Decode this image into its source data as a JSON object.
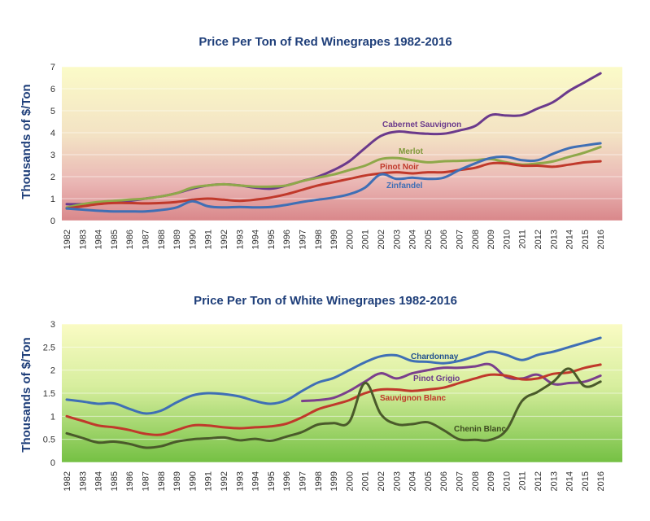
{
  "chart_data": [
    {
      "type": "line",
      "title": "Price Per Ton of Red Winegrapes 1982-2016",
      "ylabel": "Thousands of $/Ton",
      "xlabel": "",
      "ylim": [
        0,
        7
      ],
      "yticks": [
        0,
        1,
        2,
        3,
        4,
        5,
        6,
        7
      ],
      "background": "gradient-yellow-to-red",
      "categories": [
        "1982",
        "1983",
        "1984",
        "1985",
        "1986",
        "1987",
        "1988",
        "1989",
        "1990",
        "1991",
        "1992",
        "1993",
        "1994",
        "1995",
        "1996",
        "1997",
        "1998",
        "1999",
        "2000",
        "2001",
        "2002",
        "2003",
        "2004",
        "2005",
        "2006",
        "2007",
        "2008",
        "2009",
        "2010",
        "2011",
        "2012",
        "2013",
        "2014",
        "2015",
        "2016"
      ],
      "series": [
        {
          "name": "Cabernet Sauvignon",
          "color": "#6b3a8c",
          "values": [
            0.75,
            0.75,
            0.8,
            0.85,
            0.9,
            1.0,
            1.1,
            1.25,
            1.45,
            1.6,
            1.65,
            1.6,
            1.5,
            1.45,
            1.6,
            1.8,
            2.0,
            2.3,
            2.7,
            3.3,
            3.85,
            4.05,
            4.0,
            3.95,
            3.95,
            4.1,
            4.3,
            4.8,
            4.78,
            4.8,
            5.1,
            5.4,
            5.9,
            6.3,
            6.7
          ]
        },
        {
          "name": "Merlot",
          "color": "#8fa84a",
          "values": [
            0.6,
            0.75,
            0.85,
            0.9,
            0.95,
            1.0,
            1.1,
            1.25,
            1.5,
            1.6,
            1.65,
            1.6,
            1.55,
            1.55,
            1.6,
            1.8,
            1.95,
            2.1,
            2.3,
            2.5,
            2.8,
            2.85,
            2.75,
            2.65,
            2.7,
            2.72,
            2.75,
            2.8,
            2.65,
            2.55,
            2.6,
            2.7,
            2.9,
            3.1,
            3.35
          ]
        },
        {
          "name": "Pinot Noir",
          "color": "#c0392b",
          "values": [
            0.55,
            0.65,
            0.75,
            0.8,
            0.8,
            0.78,
            0.8,
            0.85,
            0.95,
            1.0,
            0.95,
            0.9,
            0.95,
            1.05,
            1.2,
            1.4,
            1.6,
            1.75,
            1.9,
            2.05,
            2.15,
            2.2,
            2.15,
            2.2,
            2.2,
            2.3,
            2.4,
            2.6,
            2.6,
            2.5,
            2.5,
            2.45,
            2.55,
            2.65,
            2.7
          ]
        },
        {
          "name": "Zinfandel",
          "color": "#3f6fb5",
          "values": [
            0.55,
            0.5,
            0.45,
            0.42,
            0.42,
            0.42,
            0.48,
            0.6,
            0.88,
            0.65,
            0.6,
            0.62,
            0.6,
            0.62,
            0.72,
            0.85,
            0.95,
            1.05,
            1.2,
            1.5,
            2.1,
            1.9,
            1.95,
            1.9,
            1.95,
            2.3,
            2.6,
            2.85,
            2.9,
            2.75,
            2.75,
            3.05,
            3.3,
            3.42,
            3.52
          ]
        }
      ],
      "labels": [
        {
          "series": "Cabernet Sauvignon",
          "text": "Cabernet Sauvignon"
        },
        {
          "series": "Merlot",
          "text": "Merlot"
        },
        {
          "series": "Pinot Noir",
          "text": "Pinot Noir"
        },
        {
          "series": "Zinfandel",
          "text": "Zinfandel"
        }
      ]
    },
    {
      "type": "line",
      "title": "Price Per Ton of White Winegrapes 1982-2016",
      "ylabel": "Thousands of $/Ton",
      "xlabel": "",
      "ylim": [
        0,
        3
      ],
      "yticks": [
        0,
        0.5,
        1,
        1.5,
        2,
        2.5,
        3
      ],
      "ytick_labels": [
        "0",
        "0.5",
        "1",
        "1.5",
        "2",
        "2.5",
        "3"
      ],
      "background": "gradient-yellow-to-green",
      "categories": [
        "1982",
        "1983",
        "1984",
        "1985",
        "1986",
        "1987",
        "1988",
        "1989",
        "1990",
        "1991",
        "1992",
        "1993",
        "1994",
        "1995",
        "1996",
        "1997",
        "1998",
        "1999",
        "2000",
        "2001",
        "2002",
        "2003",
        "2004",
        "2005",
        "2006",
        "2007",
        "2008",
        "2009",
        "2010",
        "2011",
        "2012",
        "2013",
        "2014",
        "2015",
        "2016"
      ],
      "series": [
        {
          "name": "Chardonnay",
          "color": "#3f6fb5",
          "values": [
            1.36,
            1.32,
            1.27,
            1.28,
            1.16,
            1.06,
            1.12,
            1.3,
            1.45,
            1.5,
            1.48,
            1.43,
            1.33,
            1.27,
            1.35,
            1.55,
            1.73,
            1.83,
            2.0,
            2.17,
            2.3,
            2.32,
            2.2,
            2.18,
            2.15,
            2.2,
            2.3,
            2.4,
            2.33,
            2.22,
            2.33,
            2.4,
            2.5,
            2.6,
            2.7
          ]
        },
        {
          "name": "Pinot Grigio",
          "color": "#7a3f8c",
          "values": [
            null,
            null,
            null,
            null,
            null,
            null,
            null,
            null,
            null,
            null,
            null,
            null,
            null,
            null,
            null,
            1.33,
            1.35,
            1.4,
            1.55,
            1.75,
            1.93,
            1.82,
            1.93,
            2.0,
            2.05,
            2.05,
            2.08,
            2.12,
            1.85,
            1.82,
            1.9,
            1.7,
            1.72,
            1.75,
            1.88
          ]
        },
        {
          "name": "Sauvignon Blanc",
          "color": "#c0392b",
          "values": [
            1.0,
            0.9,
            0.8,
            0.76,
            0.7,
            0.62,
            0.6,
            0.7,
            0.8,
            0.8,
            0.76,
            0.74,
            0.76,
            0.78,
            0.84,
            0.98,
            1.15,
            1.25,
            1.35,
            1.5,
            1.58,
            1.58,
            1.55,
            1.58,
            1.62,
            1.72,
            1.82,
            1.9,
            1.88,
            1.8,
            1.82,
            1.92,
            1.95,
            2.05,
            2.12
          ]
        },
        {
          "name": "Chenin Blanc",
          "color": "#4a5a2a",
          "values": [
            0.63,
            0.53,
            0.43,
            0.45,
            0.4,
            0.32,
            0.35,
            0.45,
            0.5,
            0.52,
            0.54,
            0.48,
            0.51,
            0.47,
            0.56,
            0.66,
            0.82,
            0.85,
            0.88,
            1.72,
            1.05,
            0.83,
            0.83,
            0.87,
            0.7,
            0.5,
            0.49,
            0.49,
            0.7,
            1.33,
            1.53,
            1.75,
            2.03,
            1.65,
            1.75
          ]
        }
      ],
      "labels": [
        {
          "series": "Chardonnay",
          "text": "Chardonnay"
        },
        {
          "series": "Pinot Grigio",
          "text": "Pinot Grigio"
        },
        {
          "series": "Sauvignon Blanc",
          "text": "Sauvignon Blanc"
        },
        {
          "series": "Chenin Blanc",
          "text": "Chenin Blanc"
        }
      ]
    }
  ]
}
